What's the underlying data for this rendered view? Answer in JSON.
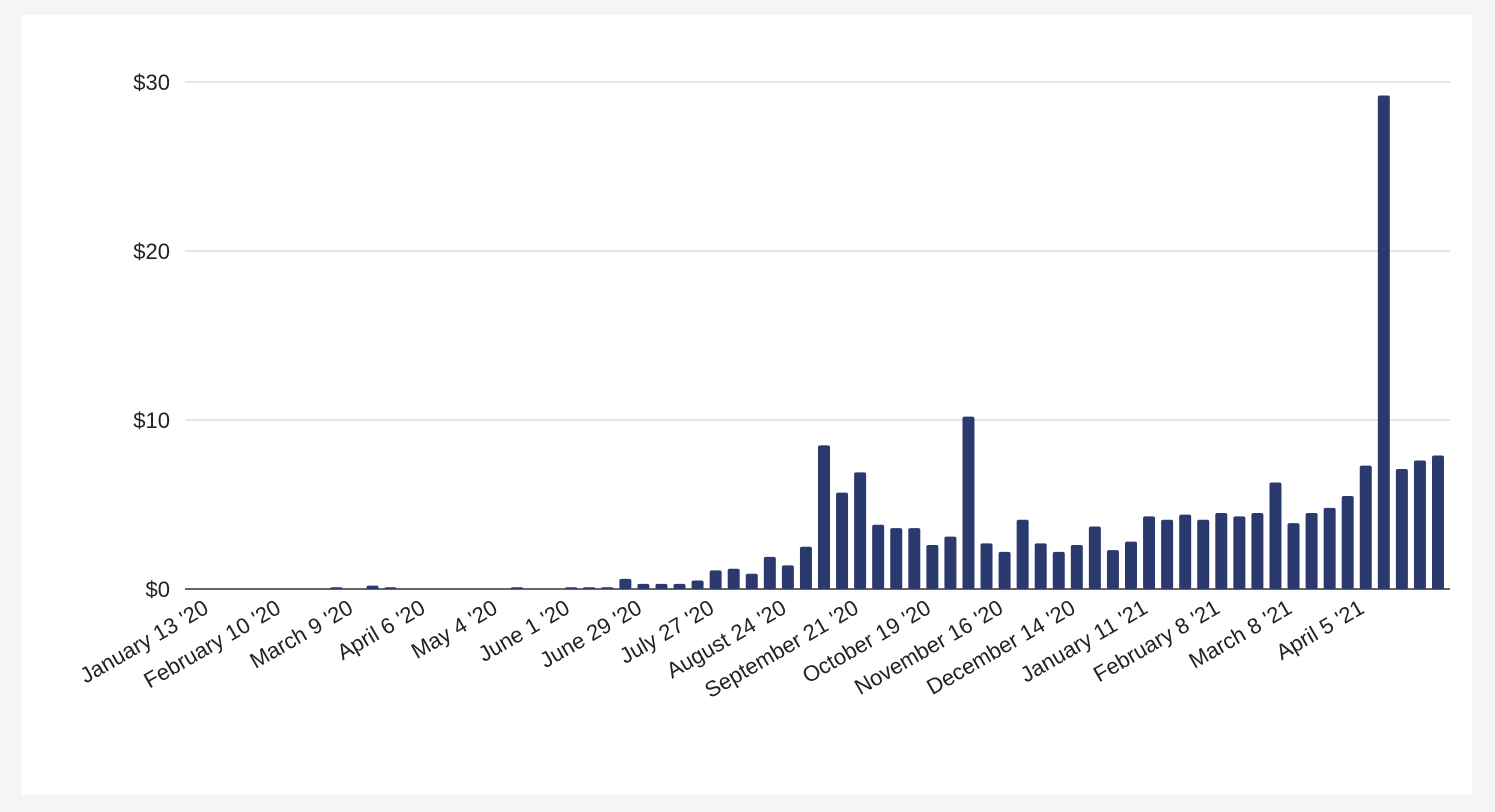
{
  "chart_data": {
    "type": "bar",
    "categories": [
      "January 13 '20",
      null,
      null,
      null,
      "February 10 '20",
      null,
      null,
      null,
      "March 9 '20",
      null,
      null,
      null,
      "April 6 '20",
      null,
      null,
      null,
      "May 4 '20",
      null,
      null,
      null,
      "June 1 '20",
      null,
      null,
      null,
      "June 29 '20",
      null,
      null,
      null,
      "July 27 '20",
      null,
      null,
      null,
      "August 24 '20",
      null,
      null,
      null,
      "September 21 '20",
      null,
      null,
      null,
      "October 19 '20",
      null,
      null,
      null,
      "November 16 '20",
      null,
      null,
      null,
      "December 14 '20",
      null,
      null,
      null,
      "January 11 '21",
      null,
      null,
      null,
      "February 8 '21",
      null,
      null,
      null,
      "March 8 '21",
      null,
      null,
      null,
      "April 5 '21",
      null,
      null,
      null,
      null
    ],
    "values": [
      0,
      0,
      0,
      0,
      0,
      0,
      0,
      0.1,
      0,
      0.2,
      0.1,
      0,
      0,
      0,
      0,
      0,
      0,
      0.1,
      0,
      0,
      0.1,
      0.1,
      0.1,
      0.6,
      0.3,
      0.3,
      0.3,
      0.5,
      1.1,
      1.2,
      0.9,
      1.9,
      1.4,
      2.5,
      8.5,
      5.7,
      6.9,
      3.8,
      3.6,
      3.6,
      2.6,
      3.1,
      10.2,
      2.7,
      2.2,
      4.1,
      2.7,
      2.2,
      2.6,
      3.7,
      2.3,
      2.8,
      4.3,
      4.1,
      4.4,
      4.1,
      4.5,
      4.3,
      4.5,
      6.3,
      3.9,
      4.5,
      4.8,
      5.5,
      7.3,
      29.2,
      7.1,
      7.6,
      7.9
    ],
    "color": "#2b3a6e",
    "ylim": [
      0,
      30
    ],
    "yticks": [
      {
        "value": 0,
        "label": "$0"
      },
      {
        "value": 10,
        "label": "$10"
      },
      {
        "value": 20,
        "label": "$20"
      },
      {
        "value": 30,
        "label": "$30"
      }
    ],
    "grid": true
  }
}
